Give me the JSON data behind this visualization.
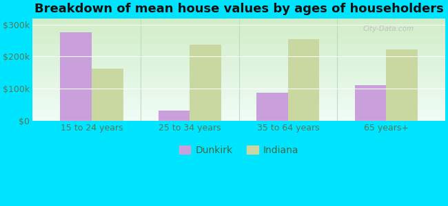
{
  "title": "Breakdown of mean house values by ages of householders",
  "categories": [
    "15 to 24 years",
    "25 to 34 years",
    "35 to 64 years",
    "65 years+"
  ],
  "dunkirk_values": [
    275000,
    32000,
    88000,
    110000
  ],
  "indiana_values": [
    163000,
    238000,
    254000,
    223000
  ],
  "dunkirk_color": "#c9a0dc",
  "indiana_color": "#c8d8a0",
  "background_top": "#d8efd0",
  "background_bottom": "#eafaff",
  "outer_background": "#00e5ff",
  "ylim": [
    0,
    320000
  ],
  "yticks": [
    0,
    100000,
    200000,
    300000
  ],
  "ytick_labels": [
    "$0",
    "$100k",
    "$200k",
    "$300k"
  ],
  "bar_width": 0.32,
  "legend_labels": [
    "Dunkirk",
    "Indiana"
  ],
  "title_fontsize": 13,
  "tick_fontsize": 9,
  "legend_fontsize": 10,
  "watermark": "City-Data.com"
}
